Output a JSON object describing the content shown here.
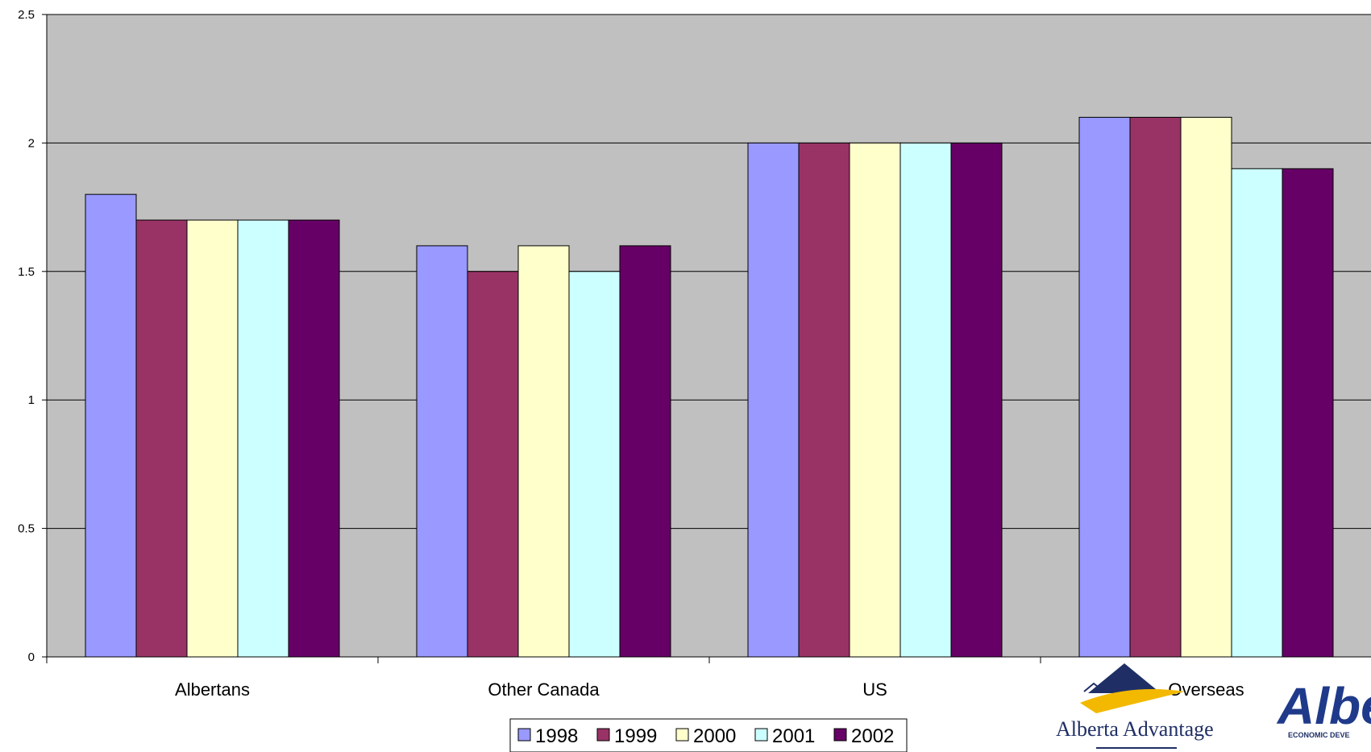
{
  "chart_data": {
    "type": "bar",
    "categories": [
      "Albertans",
      "Other Canada",
      "US",
      "Overseas"
    ],
    "series": [
      {
        "name": "1998",
        "values": [
          1.8,
          1.6,
          2.0,
          2.1
        ],
        "color": "#9999ff"
      },
      {
        "name": "1999",
        "values": [
          1.7,
          1.5,
          2.0,
          2.1
        ],
        "color": "#993366"
      },
      {
        "name": "2000",
        "values": [
          1.7,
          1.6,
          2.0,
          2.1
        ],
        "color": "#ffffcc"
      },
      {
        "name": "2001",
        "values": [
          1.7,
          1.5,
          2.0,
          1.9
        ],
        "color": "#ccffff"
      },
      {
        "name": "2002",
        "values": [
          1.7,
          1.6,
          2.0,
          1.9
        ],
        "color": "#660066"
      }
    ],
    "y_ticks": [
      "0",
      "0.5",
      "1",
      "1.5",
      "2",
      "2.5"
    ],
    "ylim": [
      0,
      2.5
    ],
    "grid": true,
    "plot_background": "#c0c0c0",
    "legend_position": "bottom"
  },
  "logos": {
    "left_text": "Alberta Advantage",
    "right_text": "Albe",
    "right_subtext": "ECONOMIC DEVE"
  }
}
